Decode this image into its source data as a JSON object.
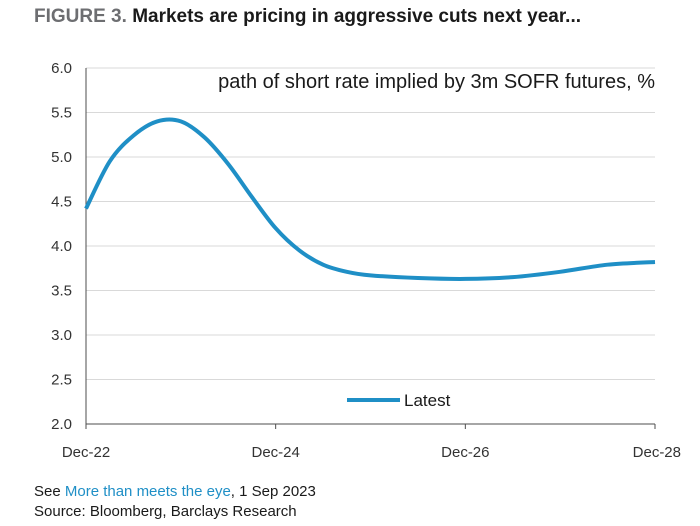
{
  "header": {
    "figure_label": "FIGURE 3.",
    "title": "Markets are pricing in aggressive cuts next year..."
  },
  "chart_data": {
    "type": "line",
    "subtitle": "path of short rate implied by 3m SOFR futures, %",
    "xlabel": "",
    "ylabel": "",
    "x_ticks": [
      "Dec-22",
      "Dec-24",
      "Dec-26",
      "Dec-28"
    ],
    "xlim": [
      "Dec-22",
      "Dec-28"
    ],
    "y_ticks": [
      "6.0",
      "5.5",
      "5.0",
      "4.5",
      "4.0",
      "3.5",
      "3.0",
      "2.5",
      "2.0"
    ],
    "ylim": [
      2.0,
      6.0
    ],
    "grid": "horizontal",
    "legend": {
      "placement": "bottom-center"
    },
    "series": [
      {
        "name": "Latest",
        "color": "#1f8fc6",
        "x": [
          "Dec-22",
          "Mar-23",
          "Jun-23",
          "Sep-23",
          "Dec-23",
          "Mar-24",
          "Jun-24",
          "Sep-24",
          "Dec-24",
          "Mar-25",
          "Jun-25",
          "Sep-25",
          "Dec-25",
          "Jun-26",
          "Dec-26",
          "Jun-27",
          "Dec-27",
          "Jun-28",
          "Dec-28"
        ],
        "values": [
          4.42,
          4.95,
          5.24,
          5.4,
          5.4,
          5.22,
          4.92,
          4.55,
          4.2,
          3.95,
          3.79,
          3.71,
          3.67,
          3.64,
          3.63,
          3.65,
          3.71,
          3.79,
          3.82
        ]
      }
    ]
  },
  "footer": {
    "see_prefix": "See ",
    "link_text": "More than meets the eye",
    "date": ", 1 Sep 2023",
    "source": "Source: Bloomberg, Barclays Research"
  }
}
